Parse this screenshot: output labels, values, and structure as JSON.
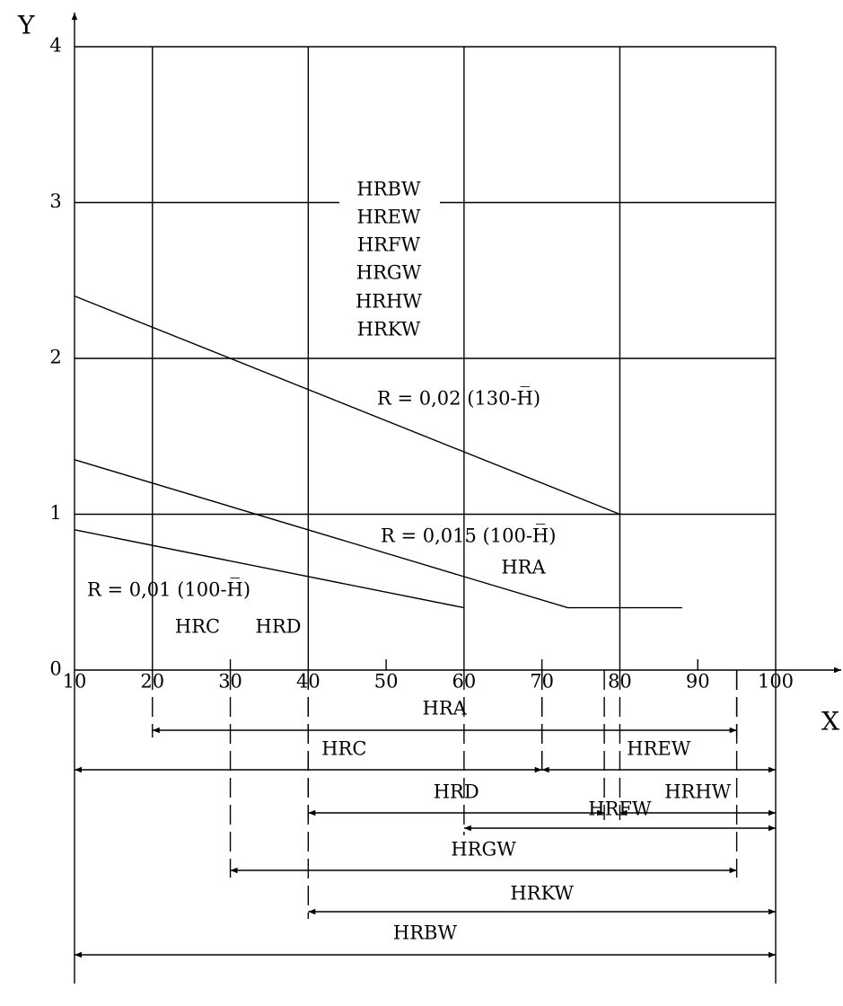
{
  "chart_data": {
    "type": "line",
    "x_label": "X",
    "y_label": "Y",
    "xlim": [
      10,
      100
    ],
    "ylim": [
      0,
      4
    ],
    "xticks": [
      10,
      20,
      30,
      40,
      50,
      60,
      70,
      80,
      90,
      100
    ],
    "yticks": [
      0,
      1,
      2,
      3,
      4
    ],
    "grid": true,
    "series": [
      {
        "name": "R = 0,02 (130-H̅)",
        "color": "#000000",
        "x": [
          10,
          80
        ],
        "values": [
          2.4,
          1.0
        ]
      },
      {
        "name": "R = 0,015 (100-H̅)",
        "color": "#000000",
        "x": [
          10,
          73.3,
          88
        ],
        "values": [
          1.35,
          0.4,
          0.4
        ]
      },
      {
        "name": "R = 0,01 (100-H̅)",
        "color": "#000000",
        "x": [
          10,
          60
        ],
        "values": [
          0.9,
          0.4
        ]
      }
    ],
    "annotations": [
      "HRBW",
      "HREW",
      "HRFW",
      "HRGW",
      "HRHW",
      "HRKW",
      "HRA",
      "HRC",
      "HRD"
    ],
    "ranges": [
      {
        "name": "HRA",
        "start": 20,
        "end": 95
      },
      {
        "name": "HRC",
        "start": 10,
        "end": 70
      },
      {
        "name": "HREW",
        "start": 70,
        "end": 100
      },
      {
        "name": "HRD",
        "start": 40,
        "end": 78
      },
      {
        "name": "HRHW",
        "start": 80,
        "end": 100
      },
      {
        "name": "HRFW",
        "start": 60,
        "end": 100
      },
      {
        "name": "HRGW",
        "start": 30,
        "end": 95
      },
      {
        "name": "HRKW",
        "start": 40,
        "end": 100
      },
      {
        "name": "HRBW",
        "start": 10,
        "end": 100
      }
    ]
  }
}
